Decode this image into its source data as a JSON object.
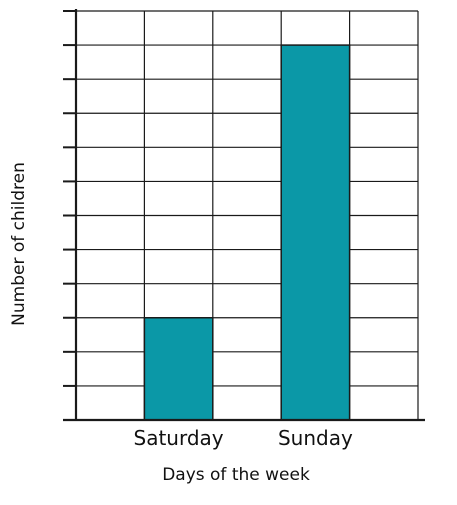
{
  "chart_data": {
    "type": "bar",
    "categories": [
      "Saturday",
      "Sunday"
    ],
    "values": [
      3,
      11
    ],
    "xlabel": "Days of the week",
    "ylabel": "Number of children",
    "ylim": [
      0,
      12
    ],
    "grid": true,
    "y_tick_labels_shown": false,
    "bar_color": "#0b98a7",
    "grid_color": "#1a1a1a"
  }
}
